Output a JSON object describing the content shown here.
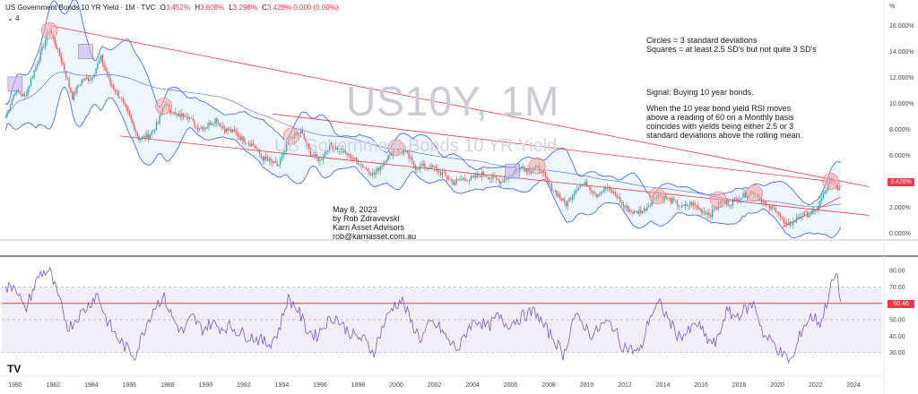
{
  "header": {
    "symbol_line": "US Government Bonds 10 YR Yield · 1M · TVC",
    "open_label": "O",
    "open": "3.452%",
    "high_label": "H",
    "high": "3.608%",
    "low_label": "L",
    "low": "3.298%",
    "close_label": "C",
    "close": "3.428%",
    "change": "0.000 (0.00%)",
    "indicator_count": "4"
  },
  "watermark": {
    "ticker": "US10Y, 1M",
    "name": "US Government Bonds 10 YR Yield"
  },
  "notes": {
    "legend_line1": "Circles = 3 standard deviations",
    "legend_line2": "Squares = at least 2.5 SD's but not quite 3 SD's",
    "signal_title": "Signal: Buying 10 year bonds.",
    "signal_line1": "When the 10 year bond yield RSI moves",
    "signal_line2": "above a reading of 60 on a Monthly basis",
    "signal_line3": "coincides with yields being either 2.5 or 3",
    "signal_line4": "standard deviations above the rolling mean.",
    "date": "May 8, 2023",
    "author": "by Rob Zdravevski",
    "company": "Karri Asset Advisors",
    "email": "rob@karriasset.com.au"
  },
  "price_tag": "3.428%",
  "rsi_tag": "60.46",
  "tv_logo": "TV",
  "colors": {
    "candle_up": "#26a69a",
    "candle_down": "#ef5350",
    "band": "#2962ff",
    "band_fill": "#e3eefc",
    "trendline": "#f23645",
    "rsi_line": "#7e57c2",
    "rsi_band": "#ede7f6",
    "circle": "#f6a5a5",
    "square": "#c9b3ea"
  },
  "chart_data": {
    "type": "line",
    "price_axis": {
      "unit_label": "%",
      "ticks": [
        "16.000%",
        "14.000%",
        "12.000%",
        "10.000%",
        "8.000%",
        "6.000%",
        "4.000%",
        "2.000%",
        "0.000%"
      ],
      "ylim": [
        -0.5,
        17
      ]
    },
    "x_ticks": [
      "1980",
      "1982",
      "1984",
      "1986",
      "1988",
      "1990",
      "1992",
      "1994",
      "1996",
      "1998",
      "2000",
      "2002",
      "2004",
      "2006",
      "2008",
      "2010",
      "2012",
      "2014",
      "2016",
      "2018",
      "2020",
      "2022",
      "2024"
    ],
    "xlim": [
      1979.3,
      2025.5
    ],
    "yield_series": {
      "name": "US10Y",
      "x": [
        1979.5,
        1980.0,
        1980.5,
        1981.0,
        1981.5,
        1981.8,
        1982.5,
        1983.0,
        1983.5,
        1984.0,
        1984.5,
        1985.0,
        1985.5,
        1986.0,
        1986.5,
        1987.0,
        1987.5,
        1987.8,
        1988.5,
        1989.0,
        1989.5,
        1990.0,
        1990.5,
        1991.0,
        1991.5,
        1992.0,
        1992.5,
        1993.0,
        1993.8,
        1994.5,
        1995.0,
        1995.5,
        1996.0,
        1996.5,
        1997.0,
        1997.5,
        1998.0,
        1998.8,
        1999.5,
        2000.0,
        2000.5,
        2001.0,
        2001.5,
        2002.0,
        2002.5,
        2003.0,
        2003.5,
        2004.0,
        2004.5,
        2005.0,
        2005.5,
        2006.0,
        2006.5,
        2007.0,
        2007.5,
        2008.0,
        2008.9,
        2009.5,
        2010.0,
        2010.5,
        2011.0,
        2011.5,
        2012.0,
        2012.5,
        2013.0,
        2013.7,
        2014.5,
        2015.0,
        2015.5,
        2016.0,
        2016.5,
        2017.0,
        2017.5,
        2018.0,
        2018.8,
        2019.5,
        2020.0,
        2020.4,
        2020.8,
        2021.2,
        2021.6,
        2022.0,
        2022.4,
        2022.8,
        2023.1,
        2023.35
      ],
      "y": [
        9.0,
        11.0,
        10.5,
        12.5,
        14.5,
        15.8,
        13.0,
        10.5,
        11.8,
        12.0,
        13.5,
        11.5,
        10.5,
        9.0,
        7.3,
        7.5,
        8.5,
        10.0,
        9.0,
        9.2,
        8.2,
        8.2,
        8.8,
        8.0,
        7.8,
        7.2,
        6.8,
        5.8,
        5.2,
        7.4,
        7.8,
        6.2,
        5.6,
        6.8,
        6.5,
        6.0,
        5.5,
        4.5,
        5.8,
        6.6,
        6.2,
        5.1,
        5.2,
        5.0,
        4.5,
        3.9,
        4.2,
        4.2,
        4.6,
        4.3,
        4.0,
        4.5,
        5.2,
        4.8,
        5.1,
        3.8,
        2.2,
        3.6,
        3.8,
        3.0,
        3.5,
        3.0,
        2.0,
        1.6,
        1.8,
        3.0,
        2.5,
        2.0,
        2.3,
        1.8,
        1.5,
        2.4,
        2.3,
        2.8,
        3.2,
        2.0,
        1.8,
        0.6,
        0.8,
        1.4,
        1.5,
        1.7,
        2.9,
        4.1,
        3.6,
        3.43
      ]
    },
    "rsi_panel": {
      "ticks": [
        "80.00",
        "70.00",
        "60.00",
        "50.00",
        "40.00",
        "30.00"
      ],
      "ylim": [
        20,
        85
      ],
      "band": [
        30,
        70
      ],
      "signal_level": 60,
      "rsi_series": {
        "name": "RSI",
        "x": [
          1979.5,
          1980.0,
          1980.5,
          1981.0,
          1981.3,
          1981.8,
          1982.3,
          1982.8,
          1983.3,
          1983.8,
          1984.3,
          1984.8,
          1985.3,
          1985.8,
          1986.3,
          1986.8,
          1987.3,
          1987.8,
          1988.3,
          1988.8,
          1989.3,
          1989.8,
          1990.3,
          1990.8,
          1991.3,
          1991.8,
          1992.3,
          1992.8,
          1993.3,
          1993.8,
          1994.3,
          1994.8,
          1995.3,
          1995.8,
          1996.3,
          1996.8,
          1997.3,
          1997.8,
          1998.3,
          1998.8,
          1999.3,
          1999.8,
          2000.3,
          2000.8,
          2001.3,
          2001.8,
          2002.3,
          2002.8,
          2003.3,
          2003.8,
          2004.3,
          2004.8,
          2005.3,
          2005.8,
          2006.3,
          2006.8,
          2007.3,
          2007.8,
          2008.3,
          2008.8,
          2009.3,
          2009.8,
          2010.3,
          2010.8,
          2011.3,
          2011.8,
          2012.3,
          2012.8,
          2013.3,
          2013.8,
          2014.3,
          2014.8,
          2015.3,
          2015.8,
          2016.3,
          2016.8,
          2017.3,
          2017.8,
          2018.3,
          2018.8,
          2019.3,
          2019.8,
          2020.3,
          2020.8,
          2021.3,
          2021.8,
          2022.3,
          2022.8,
          2023.1,
          2023.35
        ],
        "y": [
          68,
          72,
          55,
          70,
          78,
          80,
          62,
          45,
          52,
          58,
          66,
          50,
          40,
          33,
          28,
          45,
          58,
          64,
          50,
          42,
          52,
          44,
          48,
          45,
          46,
          42,
          40,
          38,
          35,
          42,
          63,
          57,
          44,
          40,
          48,
          52,
          45,
          40,
          38,
          30,
          46,
          58,
          62,
          48,
          38,
          48,
          45,
          36,
          32,
          46,
          50,
          45,
          52,
          47,
          50,
          53,
          55,
          45,
          38,
          28,
          52,
          48,
          40,
          47,
          48,
          35,
          32,
          30,
          52,
          60,
          50,
          40,
          42,
          48,
          38,
          35,
          55,
          52,
          56,
          60,
          40,
          36,
          28,
          25,
          45,
          52,
          48,
          70,
          78,
          60
        ]
      }
    }
  }
}
